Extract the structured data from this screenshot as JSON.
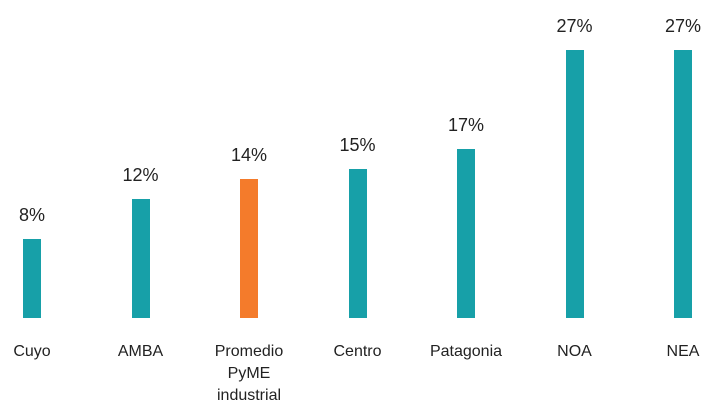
{
  "chart_data": {
    "type": "bar",
    "categories": [
      "Cuyo",
      "AMBA",
      "Promedio PyME industrial",
      "Centro",
      "Patagonia",
      "NOA",
      "NEA"
    ],
    "values": [
      8,
      12,
      14,
      15,
      17,
      27,
      27
    ],
    "value_labels": [
      "8%",
      "12%",
      "14%",
      "15%",
      "17%",
      "27%",
      "27%"
    ],
    "colors": [
      "#17a0a8",
      "#17a0a8",
      "#f47b2b",
      "#17a0a8",
      "#17a0a8",
      "#17a0a8",
      "#17a0a8"
    ]
  }
}
